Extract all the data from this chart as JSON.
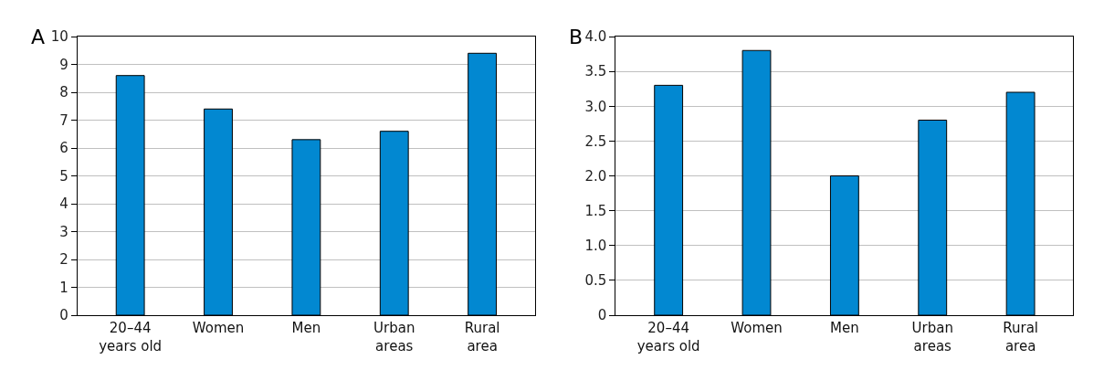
{
  "chart_data": [
    {
      "type": "bar",
      "title": "A",
      "categories": [
        "20–44\nyears old",
        "Women",
        "Men",
        "Urban\nareas",
        "Rural\narea"
      ],
      "values": [
        8.6,
        7.4,
        6.3,
        6.6,
        9.4
      ],
      "color": "#0288d1",
      "ylim": [
        0,
        10
      ],
      "yticks": [
        0,
        1,
        2,
        3,
        4,
        5,
        6,
        7,
        8,
        9,
        10
      ],
      "grid": "y"
    },
    {
      "type": "bar",
      "title": "B",
      "categories": [
        "20–44\nyears old",
        "Women",
        "Men",
        "Urban\nareas",
        "Rural\narea"
      ],
      "values": [
        3.3,
        3.8,
        2.0,
        2.8,
        3.2
      ],
      "color": "#0288d1",
      "ylim": [
        0,
        4
      ],
      "yticks": [
        0,
        {
          "value": 0.5,
          "label": "0.5"
        },
        {
          "value": 1,
          "label": "1.0"
        },
        {
          "value": 1.5,
          "label": "1.5"
        },
        {
          "value": 2,
          "label": "2.0"
        },
        {
          "value": 2.5,
          "label": "2.5"
        },
        {
          "value": 3,
          "label": "3.0"
        },
        {
          "value": 3.5,
          "label": "3.5"
        },
        {
          "value": 4,
          "label": "4.0"
        }
      ],
      "grid": "y"
    }
  ]
}
